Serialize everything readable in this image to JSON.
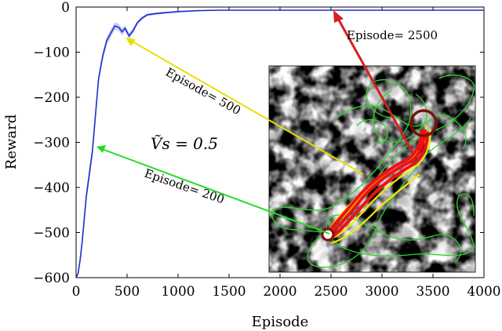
{
  "chart_data": {
    "type": "line",
    "xlabel": "Episode",
    "ylabel": "Reward",
    "xlim": [
      0,
      4000
    ],
    "ylim": [
      -600,
      0
    ],
    "x_ticks": [
      0,
      500,
      1000,
      1500,
      2000,
      2500,
      3000,
      3500,
      4000
    ],
    "y_ticks": [
      0,
      -100,
      -200,
      -300,
      -400,
      -500,
      -600
    ],
    "x_tick_labels": [
      "0",
      "500",
      "1000",
      "1500",
      "2000",
      "2500",
      "3000",
      "3500",
      "4000"
    ],
    "y_tick_labels": [
      "0",
      "−100",
      "−200",
      "−300",
      "−400",
      "−500",
      "−600"
    ],
    "grid": false,
    "series": [
      {
        "color": "#1f2fcc",
        "band_color": "#9fa8ee",
        "x": [
          0,
          20,
          40,
          60,
          80,
          100,
          130,
          160,
          190,
          220,
          260,
          300,
          340,
          380,
          420,
          450,
          480,
          520,
          560,
          600,
          650,
          700,
          800,
          900,
          1000,
          1100,
          1200,
          1400,
          1600,
          2000,
          2500,
          3000,
          3500,
          4000
        ],
        "y": [
          -600,
          -590,
          -560,
          -520,
          -470,
          -420,
          -370,
          -320,
          -240,
          -160,
          -110,
          -75,
          -58,
          -42,
          -45,
          -55,
          -47,
          -64,
          -52,
          -35,
          -24,
          -17,
          -14,
          -12,
          -10,
          -9,
          -8,
          -7,
          -7,
          -7,
          -7,
          -7,
          -7,
          -7
        ],
        "band": [
          0,
          0,
          10,
          12,
          14,
          15,
          15,
          14,
          12,
          10,
          10,
          9,
          9,
          8,
          8,
          8,
          7,
          7,
          6,
          5,
          4,
          3,
          3,
          2,
          2,
          1,
          1,
          1,
          1,
          1,
          1,
          1,
          1,
          1
        ]
      }
    ],
    "annotations": [
      {
        "text": "Episode= 2500",
        "color": "#d62020",
        "points_to": [
          2500,
          -10
        ]
      },
      {
        "text": "Episode= 500",
        "color": "#e8e000",
        "points_to": [
          500,
          -72
        ]
      },
      {
        "text": "Episode= 200",
        "color": "#22dd22",
        "points_to": [
          200,
          -310
        ]
      },
      {
        "text": "Ṽs = 0.5"
      }
    ],
    "inset": {
      "content": "flow field with trajectories",
      "trajectory_colors": [
        "#2fd52f",
        "#f2ea00",
        "#ee1111"
      ],
      "start_marker_color": "#7a0f0f",
      "target_marker_color": "#7a0f0f"
    }
  }
}
